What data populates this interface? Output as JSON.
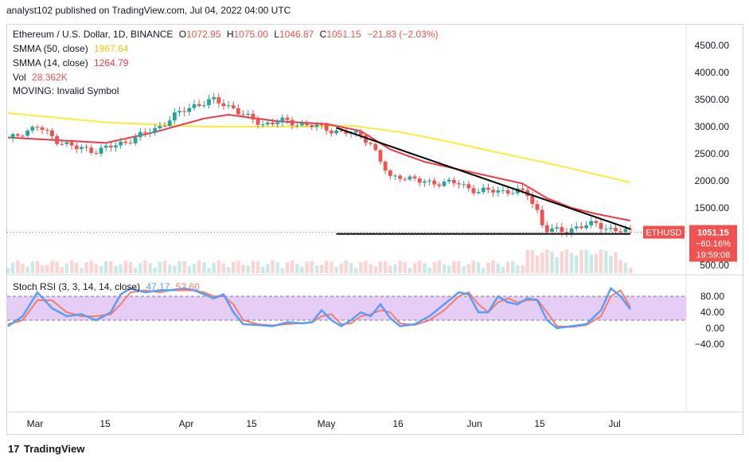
{
  "header": {
    "published": "analyst102 published on TradingView.com, Jul 04, 2022 04:00 UTC"
  },
  "legend": {
    "symbol": "Ethereum / U.S. Dollar, 1D, BINANCE",
    "open_label": "O",
    "open": "1072.95",
    "high_label": "H",
    "high": "1075.00",
    "low_label": "L",
    "low": "1046.87",
    "close_label": "C",
    "close": "1051.15",
    "change": "−21.83 (−2.03%)",
    "smma50_label": "SMMA (50, close)",
    "smma50_value": "1967.64",
    "smma14_label": "SMMA (14, close)",
    "smma14_value": "1264.79",
    "vol_label": "Vol",
    "vol_value": "28.362K",
    "moving_label": "MOVING: Invalid Symbol"
  },
  "price_badge": {
    "symbol": "ETHUSD",
    "price": "1051.15",
    "percent": "−60.16%",
    "countdown": "19:59:08"
  },
  "colors": {
    "up": "#26a69a",
    "down": "#ef5350",
    "smma50": "#ffeb3b",
    "smma14": "#f23645",
    "stoch_k": "#5b9cf6",
    "stoch_d": "#f57c6e",
    "band": "#e1c4f4",
    "band_line": "#787b86"
  },
  "rsi_legend": {
    "label": "Stoch RSI (3, 3, 14, 14, close)",
    "k": "47.17",
    "d": "52.60"
  },
  "price_axis": [
    "4500.00",
    "4000.00",
    "3500.00",
    "3000.00",
    "2500.00",
    "2000.00",
    "1500.00",
    "500.00"
  ],
  "rsi_axis": [
    "80.00",
    "40.00",
    "0.00",
    "−40.00"
  ],
  "x_axis": [
    "Mar",
    "15",
    "Apr",
    "15",
    "May",
    "16",
    "Jun",
    "15",
    "Jul"
  ],
  "footer": {
    "logo": "TradingView"
  },
  "chart_data": [
    {
      "type": "candlestick",
      "title": "Ethereum / U.S. Dollar, 1D, BINANCE",
      "ylim": [
        500,
        4800
      ],
      "x_ticks": [
        "Mar",
        "15",
        "Apr",
        "15",
        "May",
        "16",
        "Jun",
        "15",
        "Jul"
      ],
      "x_day_index_range": [
        0,
        127
      ],
      "y_ticks": [
        4500,
        4000,
        3500,
        3000,
        2500,
        2000,
        1500
      ],
      "anchors": [
        {
          "day": 0,
          "price": 2750
        },
        {
          "day": 3,
          "price": 2900
        },
        {
          "day": 6,
          "price": 3000
        },
        {
          "day": 10,
          "price": 2750
        },
        {
          "day": 14,
          "price": 2600
        },
        {
          "day": 18,
          "price": 2560
        },
        {
          "day": 22,
          "price": 2650
        },
        {
          "day": 26,
          "price": 2800
        },
        {
          "day": 30,
          "price": 2950
        },
        {
          "day": 34,
          "price": 3200
        },
        {
          "day": 38,
          "price": 3400
        },
        {
          "day": 42,
          "price": 3480
        },
        {
          "day": 46,
          "price": 3350
        },
        {
          "day": 48,
          "price": 3200
        },
        {
          "day": 52,
          "price": 3050
        },
        {
          "day": 56,
          "price": 3100
        },
        {
          "day": 60,
          "price": 3050
        },
        {
          "day": 64,
          "price": 2980
        },
        {
          "day": 68,
          "price": 2900
        },
        {
          "day": 72,
          "price": 2850
        },
        {
          "day": 74,
          "price": 2700
        },
        {
          "day": 76,
          "price": 2350
        },
        {
          "day": 78,
          "price": 2050
        },
        {
          "day": 80,
          "price": 2100
        },
        {
          "day": 84,
          "price": 1980
        },
        {
          "day": 88,
          "price": 1970
        },
        {
          "day": 92,
          "price": 1950
        },
        {
          "day": 96,
          "price": 1800
        },
        {
          "day": 100,
          "price": 1820
        },
        {
          "day": 104,
          "price": 1800
        },
        {
          "day": 106,
          "price": 1750
        },
        {
          "day": 108,
          "price": 1450
        },
        {
          "day": 109,
          "price": 1200
        },
        {
          "day": 110,
          "price": 1100
        },
        {
          "day": 113,
          "price": 1060
        },
        {
          "day": 116,
          "price": 1150
        },
        {
          "day": 120,
          "price": 1200
        },
        {
          "day": 124,
          "price": 1080
        },
        {
          "day": 127,
          "price": 1051
        }
      ],
      "smma50": [
        {
          "day": 0,
          "price": 3250
        },
        {
          "day": 20,
          "price": 3080
        },
        {
          "day": 40,
          "price": 3000
        },
        {
          "day": 60,
          "price": 3000
        },
        {
          "day": 70,
          "price": 3020
        },
        {
          "day": 80,
          "price": 2900
        },
        {
          "day": 90,
          "price": 2720
        },
        {
          "day": 100,
          "price": 2520
        },
        {
          "day": 110,
          "price": 2330
        },
        {
          "day": 120,
          "price": 2120
        },
        {
          "day": 127,
          "price": 1967.64
        }
      ],
      "smma14": [
        {
          "day": 0,
          "price": 2800
        },
        {
          "day": 10,
          "price": 2750
        },
        {
          "day": 20,
          "price": 2700
        },
        {
          "day": 30,
          "price": 2900
        },
        {
          "day": 40,
          "price": 3150
        },
        {
          "day": 45,
          "price": 3220
        },
        {
          "day": 55,
          "price": 3100
        },
        {
          "day": 65,
          "price": 3050
        },
        {
          "day": 72,
          "price": 2920
        },
        {
          "day": 78,
          "price": 2580
        },
        {
          "day": 85,
          "price": 2350
        },
        {
          "day": 95,
          "price": 2150
        },
        {
          "day": 105,
          "price": 1950
        },
        {
          "day": 110,
          "price": 1680
        },
        {
          "day": 115,
          "price": 1500
        },
        {
          "day": 120,
          "price": 1390
        },
        {
          "day": 127,
          "price": 1264.79
        }
      ],
      "trendline": [
        {
          "day": 67,
          "price": 2980
        },
        {
          "day": 127,
          "price": 1110
        }
      ],
      "support": [
        {
          "day": 67,
          "price": 1020
        },
        {
          "day": 127,
          "price": 1020
        }
      ],
      "last_price": 1051.15
    },
    {
      "type": "line",
      "title": "Stoch RSI (3, 3, 14, 14, close)",
      "ylim": [
        -60,
        110
      ],
      "y_ticks": [
        80,
        40,
        0,
        -40
      ],
      "band": [
        20,
        80
      ],
      "series": [
        {
          "name": "K",
          "points": [
            {
              "day": 0,
              "v": 5
            },
            {
              "day": 3,
              "v": 30
            },
            {
              "day": 6,
              "v": 90
            },
            {
              "day": 9,
              "v": 50
            },
            {
              "day": 12,
              "v": 30
            },
            {
              "day": 15,
              "v": 35
            },
            {
              "day": 18,
              "v": 20
            },
            {
              "day": 21,
              "v": 40
            },
            {
              "day": 23,
              "v": 85
            },
            {
              "day": 25,
              "v": 100
            },
            {
              "day": 28,
              "v": 90
            },
            {
              "day": 31,
              "v": 95
            },
            {
              "day": 33,
              "v": 95
            },
            {
              "day": 36,
              "v": 100
            },
            {
              "day": 38,
              "v": 95
            },
            {
              "day": 40,
              "v": 85
            },
            {
              "day": 42,
              "v": 75
            },
            {
              "day": 44,
              "v": 85
            },
            {
              "day": 46,
              "v": 40
            },
            {
              "day": 48,
              "v": 10
            },
            {
              "day": 51,
              "v": 8
            },
            {
              "day": 54,
              "v": 5
            },
            {
              "day": 57,
              "v": 15
            },
            {
              "day": 60,
              "v": 12
            },
            {
              "day": 62,
              "v": 15
            },
            {
              "day": 64,
              "v": 45
            },
            {
              "day": 66,
              "v": 20
            },
            {
              "day": 68,
              "v": 5
            },
            {
              "day": 70,
              "v": 20
            },
            {
              "day": 72,
              "v": 40
            },
            {
              "day": 74,
              "v": 30
            },
            {
              "day": 76,
              "v": 60
            },
            {
              "day": 78,
              "v": 25
            },
            {
              "day": 80,
              "v": 5
            },
            {
              "day": 83,
              "v": 10
            },
            {
              "day": 86,
              "v": 30
            },
            {
              "day": 89,
              "v": 60
            },
            {
              "day": 92,
              "v": 90
            },
            {
              "day": 94,
              "v": 85
            },
            {
              "day": 96,
              "v": 40
            },
            {
              "day": 98,
              "v": 40
            },
            {
              "day": 100,
              "v": 80
            },
            {
              "day": 102,
              "v": 65
            },
            {
              "day": 104,
              "v": 60
            },
            {
              "day": 106,
              "v": 75
            },
            {
              "day": 108,
              "v": 70
            },
            {
              "day": 110,
              "v": 20
            },
            {
              "day": 112,
              "v": 0
            },
            {
              "day": 115,
              "v": 5
            },
            {
              "day": 118,
              "v": 10
            },
            {
              "day": 121,
              "v": 45
            },
            {
              "day": 123,
              "v": 100
            },
            {
              "day": 125,
              "v": 80
            },
            {
              "day": 127,
              "v": 47.17
            }
          ]
        },
        {
          "name": "D",
          "points": [
            {
              "day": 0,
              "v": 10
            },
            {
              "day": 3,
              "v": 20
            },
            {
              "day": 6,
              "v": 70
            },
            {
              "day": 9,
              "v": 70
            },
            {
              "day": 12,
              "v": 40
            },
            {
              "day": 15,
              "v": 30
            },
            {
              "day": 18,
              "v": 30
            },
            {
              "day": 21,
              "v": 35
            },
            {
              "day": 23,
              "v": 60
            },
            {
              "day": 25,
              "v": 90
            },
            {
              "day": 28,
              "v": 95
            },
            {
              "day": 31,
              "v": 90
            },
            {
              "day": 33,
              "v": 95
            },
            {
              "day": 36,
              "v": 95
            },
            {
              "day": 38,
              "v": 95
            },
            {
              "day": 40,
              "v": 90
            },
            {
              "day": 42,
              "v": 80
            },
            {
              "day": 44,
              "v": 80
            },
            {
              "day": 46,
              "v": 60
            },
            {
              "day": 48,
              "v": 20
            },
            {
              "day": 51,
              "v": 10
            },
            {
              "day": 54,
              "v": 7
            },
            {
              "day": 57,
              "v": 10
            },
            {
              "day": 60,
              "v": 13
            },
            {
              "day": 62,
              "v": 14
            },
            {
              "day": 64,
              "v": 30
            },
            {
              "day": 66,
              "v": 35
            },
            {
              "day": 68,
              "v": 10
            },
            {
              "day": 70,
              "v": 12
            },
            {
              "day": 72,
              "v": 30
            },
            {
              "day": 74,
              "v": 35
            },
            {
              "day": 76,
              "v": 45
            },
            {
              "day": 78,
              "v": 40
            },
            {
              "day": 80,
              "v": 12
            },
            {
              "day": 83,
              "v": 8
            },
            {
              "day": 86,
              "v": 20
            },
            {
              "day": 89,
              "v": 45
            },
            {
              "day": 92,
              "v": 80
            },
            {
              "day": 94,
              "v": 90
            },
            {
              "day": 96,
              "v": 60
            },
            {
              "day": 98,
              "v": 40
            },
            {
              "day": 100,
              "v": 65
            },
            {
              "day": 102,
              "v": 75
            },
            {
              "day": 104,
              "v": 65
            },
            {
              "day": 106,
              "v": 70
            },
            {
              "day": 108,
              "v": 72
            },
            {
              "day": 110,
              "v": 40
            },
            {
              "day": 112,
              "v": 5
            },
            {
              "day": 115,
              "v": 3
            },
            {
              "day": 118,
              "v": 8
            },
            {
              "day": 121,
              "v": 30
            },
            {
              "day": 123,
              "v": 80
            },
            {
              "day": 125,
              "v": 95
            },
            {
              "day": 127,
              "v": 52.6
            }
          ]
        }
      ]
    }
  ]
}
